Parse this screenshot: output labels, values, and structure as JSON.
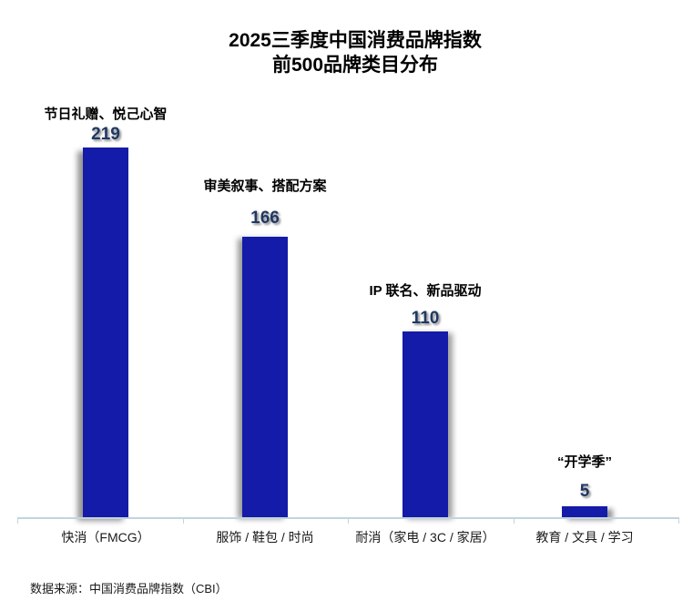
{
  "title": {
    "line1": "2025三季度中国消费品牌指数",
    "line2": "前500品牌类目分布"
  },
  "source_note": "数据来源：中国消费品牌指数（CBI）",
  "colors": {
    "bar": "#141BA8",
    "value_label": "#1F3864",
    "axis": "#C2D4DE",
    "title_text": "#000000"
  },
  "chart_data": {
    "type": "bar",
    "title": "2025三季度中国消费品牌指数 前500品牌类目分布",
    "categories": [
      "快消（FMCG）",
      "服饰 / 鞋包 / 时尚",
      "耐消（家电 / 3C / 家居）",
      "教育 / 文具 / 学习"
    ],
    "values": [
      219,
      166,
      110,
      5
    ],
    "annotations": [
      "节日礼赠、悦己心智",
      "审美叙事、搭配方案",
      "IP 联名、新品驱动",
      "“开学季”"
    ],
    "xlabel": "",
    "ylabel": "",
    "ylim": [
      0,
      240
    ],
    "grid": false,
    "legend": false,
    "bar_color": "#141BA8"
  }
}
